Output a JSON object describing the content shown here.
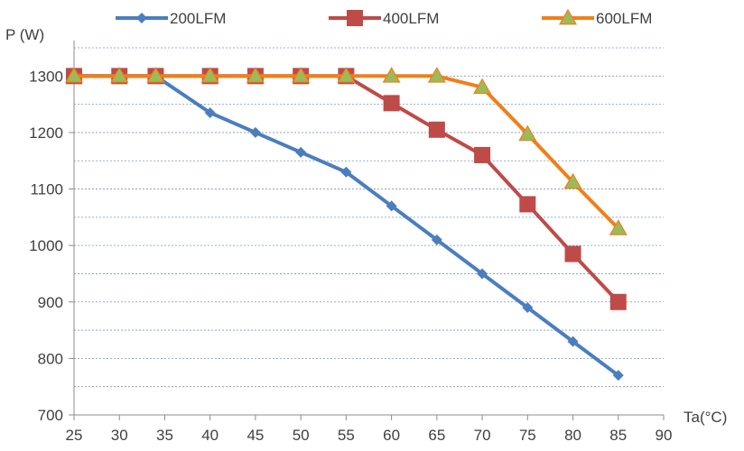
{
  "chart_data": {
    "type": "line",
    "xlabel": "Ta(°C)",
    "ylabel": "P (W)",
    "xlim": [
      25,
      90
    ],
    "ylim": [
      700,
      1350
    ],
    "x_ticks": [
      25,
      30,
      35,
      40,
      45,
      50,
      55,
      60,
      65,
      70,
      75,
      80,
      85,
      90
    ],
    "y_ticks": [
      700,
      800,
      900,
      1000,
      1100,
      1200,
      1300
    ],
    "grid": true,
    "grid_style": "dashed horizontal every 50 W",
    "legend_position": "top",
    "x": [
      25,
      30,
      35,
      40,
      45,
      50,
      55,
      60,
      65,
      70,
      75,
      80,
      85
    ],
    "series": [
      {
        "name": "200LFM",
        "color": "#4a7ebf",
        "marker": "diamond",
        "x": [
          25,
          30,
          34,
          40,
          45,
          50,
          55,
          60,
          65,
          70,
          75,
          80,
          85
        ],
        "values": [
          1300,
          1300,
          1300,
          1235,
          1200,
          1165,
          1130,
          1070,
          1010,
          950,
          890,
          830,
          770
        ]
      },
      {
        "name": "400LFM",
        "color": "#be4b48",
        "marker": "square",
        "x": [
          25,
          30,
          34,
          40,
          45,
          50,
          55,
          60,
          65,
          70,
          75,
          80,
          85
        ],
        "values": [
          1300,
          1300,
          1300,
          1300,
          1300,
          1300,
          1300,
          1252,
          1205,
          1160,
          1073,
          985,
          900
        ]
      },
      {
        "name": "600LFM",
        "color": "#f07f1a",
        "marker": "triangle",
        "marker_fill": "#9bbb59",
        "x": [
          25,
          30,
          34,
          40,
          45,
          50,
          55,
          60,
          65,
          70,
          75,
          80,
          85
        ],
        "values": [
          1300,
          1300,
          1300,
          1300,
          1300,
          1300,
          1300,
          1300,
          1300,
          1280,
          1197,
          1112,
          1030
        ]
      }
    ]
  }
}
